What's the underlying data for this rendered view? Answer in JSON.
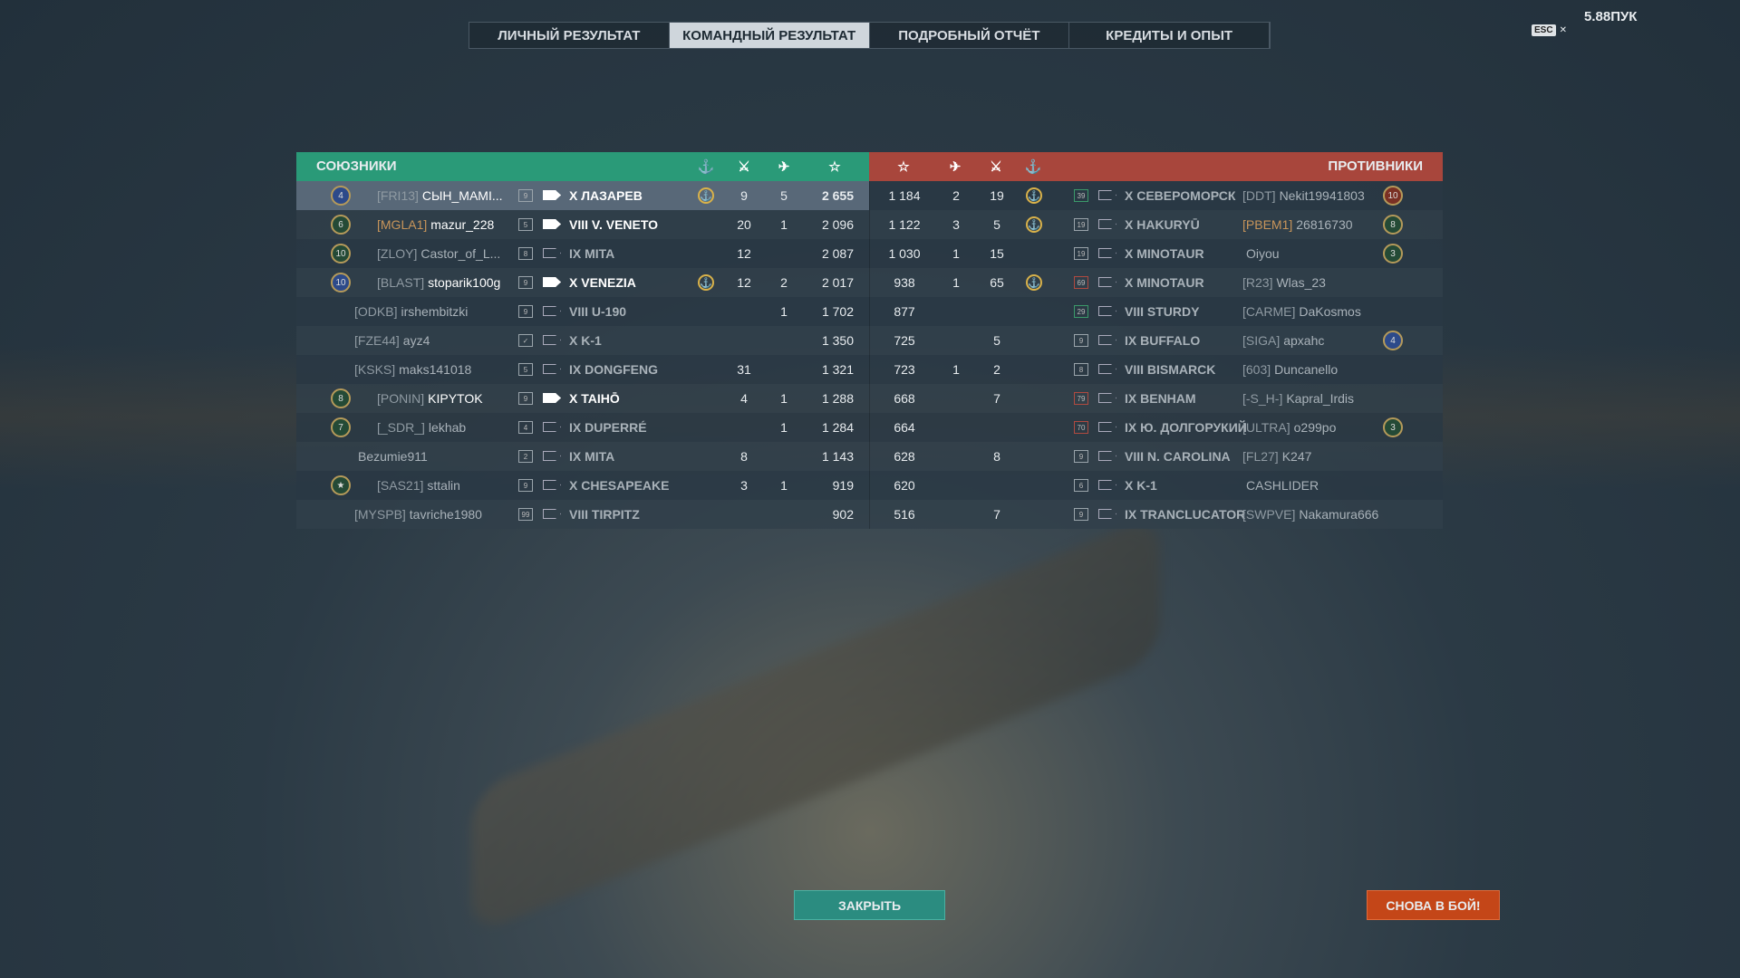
{
  "tabs": [
    "ЛИЧНЫЙ РЕЗУЛЬТАТ",
    "КОМАНДНЫЙ РЕЗУЛЬТАТ",
    "ПОДРОБНЫЙ ОТЧЁТ",
    "КРЕДИТЫ И ОПЫТ"
  ],
  "active_tab": 1,
  "topright": "5.88ПУК",
  "esc": "ESC",
  "allies_title": "СОЮЗНИКИ",
  "enemies_title": "ПРОТИВНИКИ",
  "columns": {
    "defender": "anchor-icon",
    "kills": "crossed-swords-icon",
    "planes": "plane-icon",
    "score": "star-icon"
  },
  "colors": {
    "allies": "#2a9a78",
    "enemies": "#a8463c",
    "close": "#2b8c80",
    "again": "#c44618"
  },
  "allies": [
    {
      "badge": "4",
      "badge_color": "blue",
      "tag": "[FRI13]",
      "name": "СЫН_MAMI...",
      "tier": "9",
      "ship": "X ЛАЗАРЕВ",
      "anchor": true,
      "kills": "9",
      "planes": "5",
      "score": "2 655",
      "alive": true,
      "highlight": true
    },
    {
      "badge": "6",
      "tag": "[MGLA1]",
      "tag_orange": true,
      "name": "mazur_228",
      "tier": "5",
      "ship": "VIII V. VENETO",
      "kills": "20",
      "planes": "1",
      "score": "2 096",
      "alive": true
    },
    {
      "badge": "10",
      "tag": "[ZLOY]",
      "name": "Castor_of_L...",
      "tier": "8",
      "ship": "IX MITA",
      "kills": "12",
      "planes": "",
      "score": "2 087",
      "alive": false
    },
    {
      "badge": "10",
      "badge_color": "blue",
      "tag": "[BLAST]",
      "name": "stoparik100g",
      "tier": "9",
      "ship": "X VENEZIA",
      "anchor": true,
      "kills": "12",
      "planes": "2",
      "score": "2 017",
      "alive": true
    },
    {
      "tag": "[ODKB]",
      "name": "irshembitzki",
      "tier": "9",
      "ship": "VIII U-190",
      "kills": "",
      "planes": "1",
      "score": "1 702",
      "alive": false
    },
    {
      "tag": "[FZE44]",
      "name": "ayz4",
      "tier": "✓",
      "ship": "X K-1",
      "kills": "",
      "planes": "",
      "score": "1 350",
      "alive": false
    },
    {
      "tag": "[KSKS]",
      "name": "maks141018",
      "tier": "5",
      "ship": "IX DONGFENG",
      "kills": "31",
      "planes": "",
      "score": "1 321",
      "alive": false
    },
    {
      "badge": "8",
      "tag": "[PONIN]",
      "name": "KIPYTOK",
      "tier": "9",
      "ship": "X TAIHŌ",
      "kills": "4",
      "planes": "1",
      "score": "1 288",
      "alive": true
    },
    {
      "badge": "7",
      "tag": "[_SDR_]",
      "name": "lekhab",
      "tier": "4",
      "ship": "IX DUPERRÉ",
      "kills": "",
      "planes": "1",
      "score": "1 284",
      "alive": false
    },
    {
      "tag": "",
      "name": "Bezumie911",
      "tier": "2",
      "ship": "IX MITA",
      "kills": "8",
      "planes": "",
      "score": "1 143",
      "alive": false
    },
    {
      "badge": "★",
      "tag": "[SAS21]",
      "name": "sttalin",
      "tier": "9",
      "ship": "X CHESAPEAKE",
      "kills": "3",
      "planes": "1",
      "score": "919",
      "alive": false
    },
    {
      "tag": "[MYSPB]",
      "name": "tavriche1980",
      "tier": "99",
      "ship": "VIII TIRPITZ",
      "kills": "",
      "planes": "",
      "score": "902",
      "alive": false
    }
  ],
  "enemies": [
    {
      "score": "1 184",
      "planes": "2",
      "kills": "19",
      "anchor": true,
      "tier": "39",
      "tier_color": "g",
      "ship": "X СЕВЕРОМОРСК",
      "tag": "[DDT]",
      "name": "Nekit19941803",
      "badge": "10",
      "badge_color": "red"
    },
    {
      "score": "1 122",
      "planes": "3",
      "kills": "5",
      "anchor": true,
      "tier": "19",
      "ship": "X HAKURYŪ",
      "tag": "[PBEM1]",
      "tag_orange": true,
      "name": "26816730",
      "badge": "8"
    },
    {
      "score": "1 030",
      "planes": "1",
      "kills": "15",
      "tier": "19",
      "ship": "X MINOTAUR",
      "tag": "",
      "name": "Oiyou",
      "badge": "3"
    },
    {
      "score": "938",
      "planes": "1",
      "kills": "65",
      "anchor": true,
      "tier": "69",
      "tier_color": "r",
      "ship": "X MINOTAUR",
      "tag": "[R23]",
      "name": "Wlas_23"
    },
    {
      "score": "877",
      "planes": "",
      "kills": "",
      "tier": "29",
      "tier_color": "g",
      "ship": "VIII STURDY",
      "tag": "[CARME]",
      "name": "DaKosmos"
    },
    {
      "score": "725",
      "planes": "",
      "kills": "5",
      "tier": "9",
      "ship": "IX BUFFALO",
      "tag": "[SIGA]",
      "name": "apxahc",
      "badge": "4",
      "badge_color": "blue"
    },
    {
      "score": "723",
      "planes": "1",
      "kills": "2",
      "tier": "8",
      "ship": "VIII BISMARCK",
      "tag": "[603]",
      "name": "Duncanello"
    },
    {
      "score": "668",
      "planes": "",
      "kills": "7",
      "tier": "79",
      "tier_color": "r",
      "ship": "IX BENHAM",
      "tag": "[-S_H-]",
      "name": "Kapral_Irdis"
    },
    {
      "score": "664",
      "planes": "",
      "kills": "",
      "tier": "70",
      "tier_color": "r",
      "ship": "IX Ю. ДОЛГОРУКИЙ",
      "tag": "[ULTRA]",
      "name": "o299po",
      "badge": "3"
    },
    {
      "score": "628",
      "planes": "",
      "kills": "8",
      "tier": "9",
      "ship": "VIII N. CAROLINA",
      "tag": "[FL27]",
      "name": "K247"
    },
    {
      "score": "620",
      "planes": "",
      "kills": "",
      "tier": "6",
      "ship": "X K-1",
      "tag": "",
      "name": "CASHLIDER"
    },
    {
      "score": "516",
      "planes": "",
      "kills": "7",
      "tier": "9",
      "ship": "IX TRANCLUCATOR",
      "tag": "[SWPVE]",
      "name": "Nakamura666"
    }
  ],
  "buttons": {
    "close": "ЗАКРЫТЬ",
    "again": "СНОВА В БОЙ!"
  }
}
